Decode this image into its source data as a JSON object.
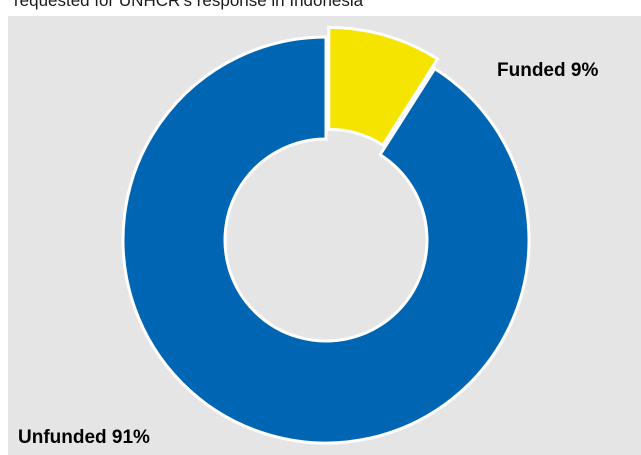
{
  "caption": "requested for UNHCR's response in Indonesia",
  "colors": {
    "panel_background": "#e5e5e5",
    "unfunded": "#0066b3",
    "funded": "#f5e300",
    "separator": "#ffffff"
  },
  "chart_data": {
    "type": "pie",
    "variant": "donut",
    "title": "",
    "slices": [
      {
        "label": "Funded",
        "value": 9,
        "display": "Funded 9%",
        "color": "#f5e300",
        "exploded": true
      },
      {
        "label": "Unfunded",
        "value": 91,
        "display": "Unfunded 91%",
        "color": "#0066b3",
        "exploded": false
      }
    ],
    "start_angle": "12 o'clock",
    "direction": "clockwise",
    "legend": "none"
  }
}
